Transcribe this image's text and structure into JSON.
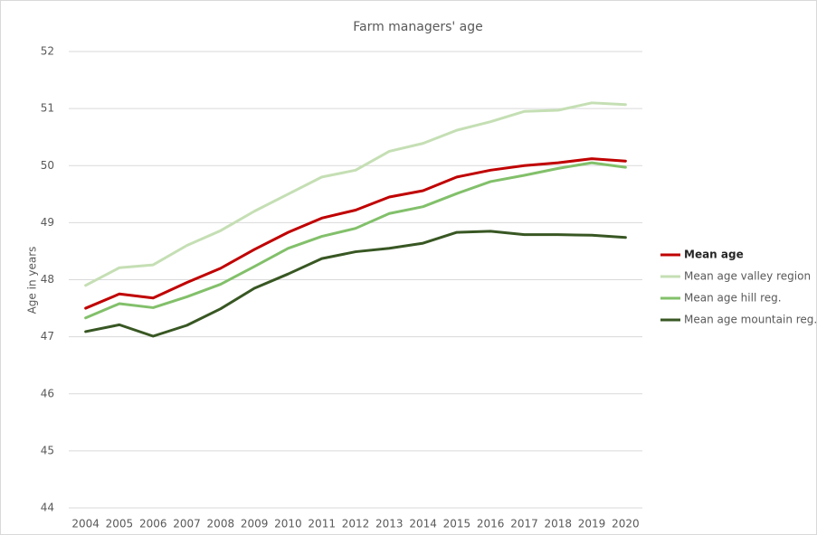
{
  "chart_data": {
    "type": "line",
    "title": "Farm managers' age",
    "y_label": "Age in years",
    "categories": [
      "2004",
      "2005",
      "2006",
      "2007",
      "2008",
      "2009",
      "2010",
      "2011",
      "2012",
      "2013",
      "2014",
      "2015",
      "2016",
      "2017",
      "2018",
      "2019",
      "2020"
    ],
    "series": [
      {
        "name": "Mean age",
        "color": "#c00000",
        "values": [
          47.5,
          47.75,
          47.68,
          47.95,
          48.2,
          48.53,
          48.83,
          49.08,
          49.22,
          49.45,
          49.56,
          49.8,
          49.92,
          50.0,
          50.05,
          50.12,
          50.08
        ]
      },
      {
        "name": "Mean age valley region",
        "color": "#c5dfb4",
        "values": [
          47.9,
          48.21,
          48.26,
          48.6,
          48.86,
          49.2,
          49.5,
          49.8,
          49.92,
          50.25,
          50.39,
          50.62,
          50.77,
          50.95,
          50.97,
          51.1,
          51.07
        ]
      },
      {
        "name": "Mean age hill reg.",
        "color": "#82c06a",
        "values": [
          47.33,
          47.58,
          47.51,
          47.7,
          47.92,
          48.23,
          48.55,
          48.76,
          48.9,
          49.16,
          49.28,
          49.51,
          49.72,
          49.83,
          49.95,
          50.05,
          49.97
        ]
      },
      {
        "name": "Mean age mountain reg.",
        "color": "#385723",
        "values": [
          47.09,
          47.21,
          47.01,
          47.2,
          47.49,
          47.85,
          48.1,
          48.37,
          48.49,
          48.55,
          48.64,
          48.83,
          48.85,
          48.79,
          48.79,
          48.78,
          48.74
        ]
      }
    ],
    "ylim": [
      44,
      52
    ],
    "yticks": [
      44,
      45,
      46,
      47,
      48,
      49,
      50,
      51,
      52
    ],
    "grid": true,
    "legend": "right"
  }
}
